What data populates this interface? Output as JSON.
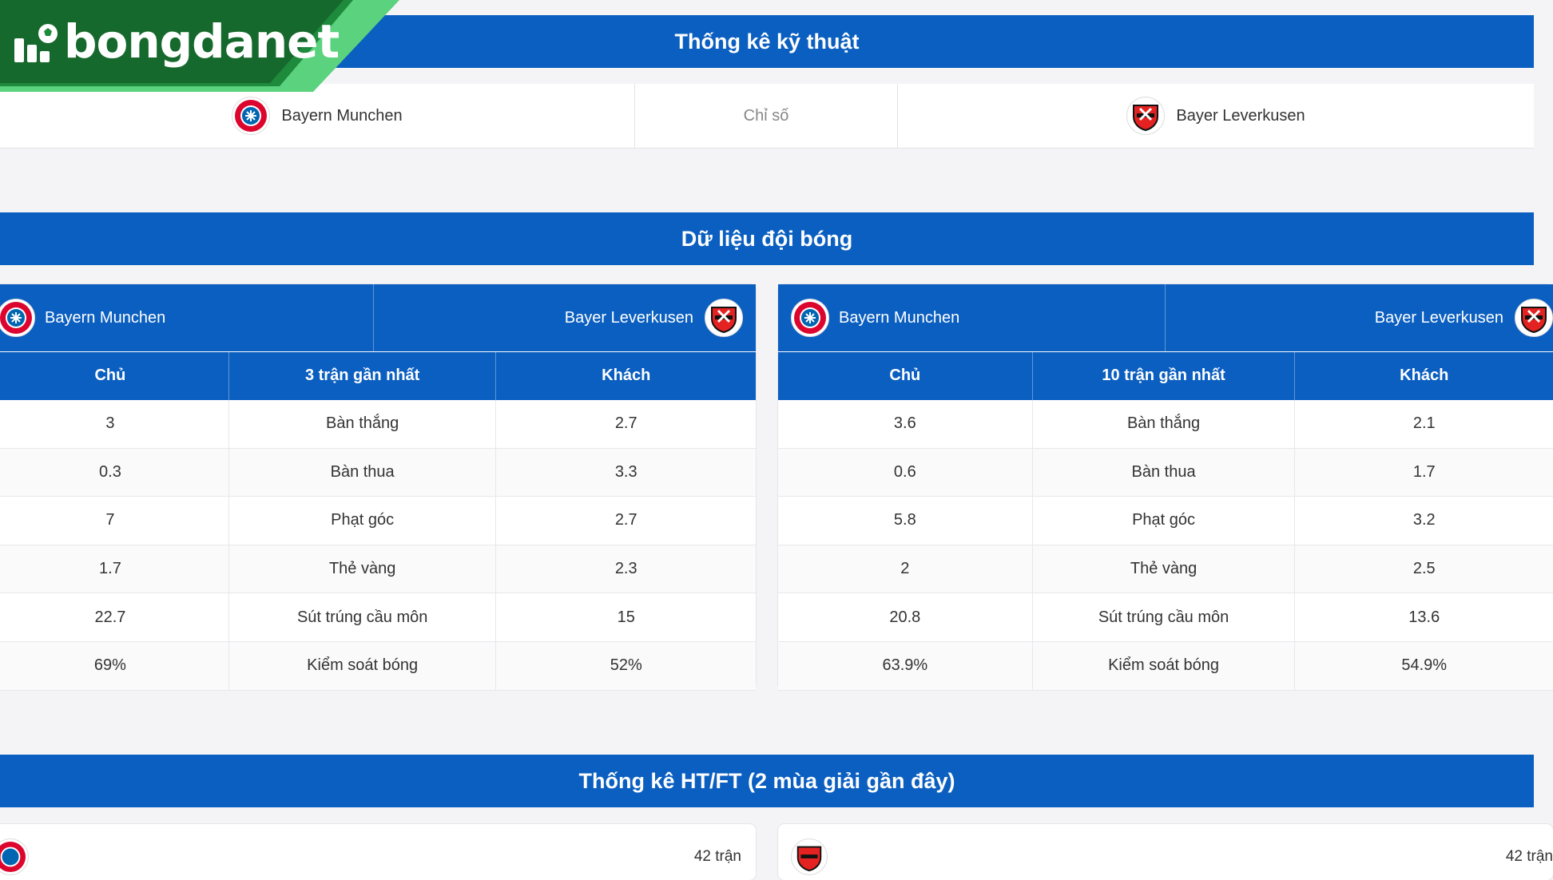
{
  "brand": {
    "name": "bongdanet",
    "green": "#1e8a3c",
    "accent_green": "#5bd27d",
    "blue": "#0b5fc0"
  },
  "tech_stats": {
    "title": "Thống kê kỹ thuật",
    "home_team": "Bayern Munchen",
    "center_label": "Chỉ số",
    "away_team": "Bayer Leverkusen"
  },
  "team_data": {
    "title": "Dữ liệu đội bóng",
    "panels": [
      {
        "home_team": "Bayern Munchen",
        "away_team": "Bayer Leverkusen",
        "col_home": "Chủ",
        "col_mid": "3 trận gần nhất",
        "col_away": "Khách",
        "rows": [
          {
            "home": "3",
            "label": "Bàn thắng",
            "away": "2.7"
          },
          {
            "home": "0.3",
            "label": "Bàn thua",
            "away": "3.3"
          },
          {
            "home": "7",
            "label": "Phạt góc",
            "away": "2.7"
          },
          {
            "home": "1.7",
            "label": "Thẻ vàng",
            "away": "2.3"
          },
          {
            "home": "22.7",
            "label": "Sút trúng cầu môn",
            "away": "15"
          },
          {
            "home": "69%",
            "label": "Kiểm soát bóng",
            "away": "52%"
          }
        ]
      },
      {
        "home_team": "Bayern Munchen",
        "away_team": "Bayer Leverkusen",
        "col_home": "Chủ",
        "col_mid": "10 trận gần nhất",
        "col_away": "Khách",
        "rows": [
          {
            "home": "3.6",
            "label": "Bàn thắng",
            "away": "2.1"
          },
          {
            "home": "0.6",
            "label": "Bàn thua",
            "away": "1.7"
          },
          {
            "home": "5.8",
            "label": "Phạt góc",
            "away": "3.2"
          },
          {
            "home": "2",
            "label": "Thẻ vàng",
            "away": "2.5"
          },
          {
            "home": "20.8",
            "label": "Sút trúng cầu môn",
            "away": "13.6"
          },
          {
            "home": "63.9%",
            "label": "Kiểm soát bóng",
            "away": "54.9%"
          }
        ]
      }
    ]
  },
  "htft": {
    "title": "Thống kê HT/FT (2 mùa giải gần đây)",
    "left_count": "42 trận",
    "right_count": "42 trận"
  }
}
